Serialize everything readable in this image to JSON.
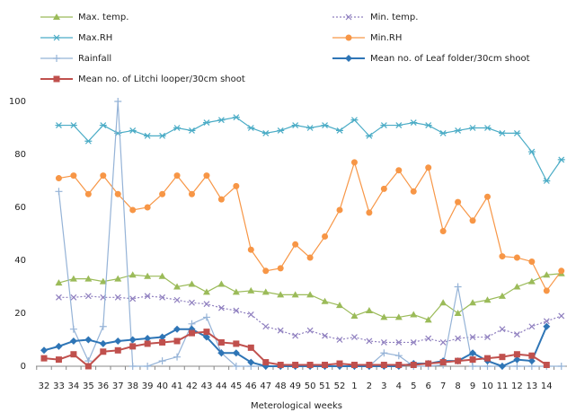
{
  "chart_data": {
    "type": "line",
    "x_label": "Meterological weeks",
    "categories": [
      "32",
      "33",
      "34",
      "35",
      "36",
      "37",
      "38",
      "39",
      "40",
      "41",
      "42",
      "43",
      "44",
      "45",
      "46",
      "47",
      "48",
      "49",
      "50",
      "51",
      "52",
      "1",
      "2",
      "3",
      "4",
      "5",
      "6",
      "7",
      "8",
      "9",
      "10",
      "11",
      "12",
      "13",
      "14",
      null
    ],
    "ylim": [
      0,
      100
    ],
    "yticks": [
      0,
      20,
      40,
      60,
      80,
      100
    ],
    "grid": false,
    "series": [
      {
        "name": "Max. temp.",
        "color": "#9bbb59",
        "marker": "triangle",
        "dash": false,
        "values": [
          null,
          31.5,
          33,
          33,
          32,
          33,
          34.5,
          34,
          34,
          30,
          31,
          28,
          31,
          28,
          28.5,
          28,
          27,
          27,
          27,
          24.5,
          23,
          19,
          21,
          18.5,
          18.5,
          19.5,
          17.5,
          24,
          20,
          24,
          25,
          26.5,
          30,
          32,
          34.5,
          35
        ]
      },
      {
        "name": "Min. temp.",
        "color": "#8f7fbf",
        "marker": "x",
        "dash": true,
        "values": [
          null,
          26,
          26,
          26.5,
          26,
          26,
          25.5,
          26.5,
          26,
          25,
          24,
          23.5,
          22,
          21,
          19.5,
          15,
          13.5,
          11.5,
          13.5,
          11.5,
          10,
          11,
          9.5,
          9,
          9,
          9,
          10.5,
          9,
          10.5,
          11,
          11,
          14,
          12,
          15,
          17,
          19
        ]
      },
      {
        "name": "Max.RH",
        "color": "#4bacc6",
        "marker": "star",
        "dash": false,
        "values": [
          null,
          91,
          91,
          85,
          91,
          88,
          89,
          87,
          87,
          90,
          89,
          92,
          93,
          94,
          90,
          88,
          89,
          91,
          90,
          91,
          89,
          93,
          87,
          91,
          91,
          92,
          91,
          88,
          89,
          90,
          90,
          88,
          88,
          81,
          70,
          78
        ]
      },
      {
        "name": "Min.RH",
        "color": "#f79646",
        "marker": "circle",
        "dash": false,
        "values": [
          null,
          71,
          72,
          65,
          72,
          65,
          59,
          60,
          65,
          72,
          65,
          72,
          63,
          68,
          44,
          36,
          37,
          46,
          41,
          49,
          59,
          77,
          58,
          67,
          74,
          66,
          75,
          51,
          62,
          55,
          64,
          41.5,
          41,
          39.5,
          28.5,
          36
        ]
      },
      {
        "name": "Rainfall",
        "color": "#95b3d7",
        "marker": "plus",
        "dash": false,
        "values": [
          null,
          66,
          14,
          2,
          15,
          100,
          0,
          0,
          2,
          3.5,
          16,
          18.5,
          5,
          0,
          0,
          0,
          0,
          0,
          0,
          0,
          0,
          0,
          0,
          5,
          4,
          0,
          0,
          0.5,
          30,
          0,
          0,
          0,
          0,
          0,
          0,
          0
        ]
      },
      {
        "name": "Mean no. of Leaf folder/30cm shoot",
        "color": "#2e75b6",
        "marker": "diamond",
        "dash": false,
        "values": [
          6,
          7.5,
          9.5,
          10,
          8.5,
          9.5,
          10,
          10.5,
          11,
          14,
          14,
          11,
          5,
          5,
          1.5,
          0,
          0,
          0,
          0,
          0,
          0,
          0,
          0,
          0,
          0,
          1,
          1,
          2,
          2,
          5,
          2,
          0,
          2.5,
          2,
          15,
          null
        ]
      },
      {
        "name": "Mean no. of Litchi looper/30cm shoot",
        "color": "#c0504d",
        "marker": "square",
        "dash": false,
        "values": [
          3,
          2.5,
          4.5,
          0,
          5.5,
          6,
          7.5,
          8.5,
          9,
          9.5,
          12.5,
          13,
          9,
          8.5,
          7,
          1.5,
          0.5,
          0.5,
          0.5,
          0.5,
          1,
          0.5,
          0.5,
          0.5,
          0.5,
          0.5,
          1,
          1.5,
          2,
          2.5,
          3,
          3.5,
          4.5,
          4,
          0.5,
          null
        ]
      }
    ]
  }
}
